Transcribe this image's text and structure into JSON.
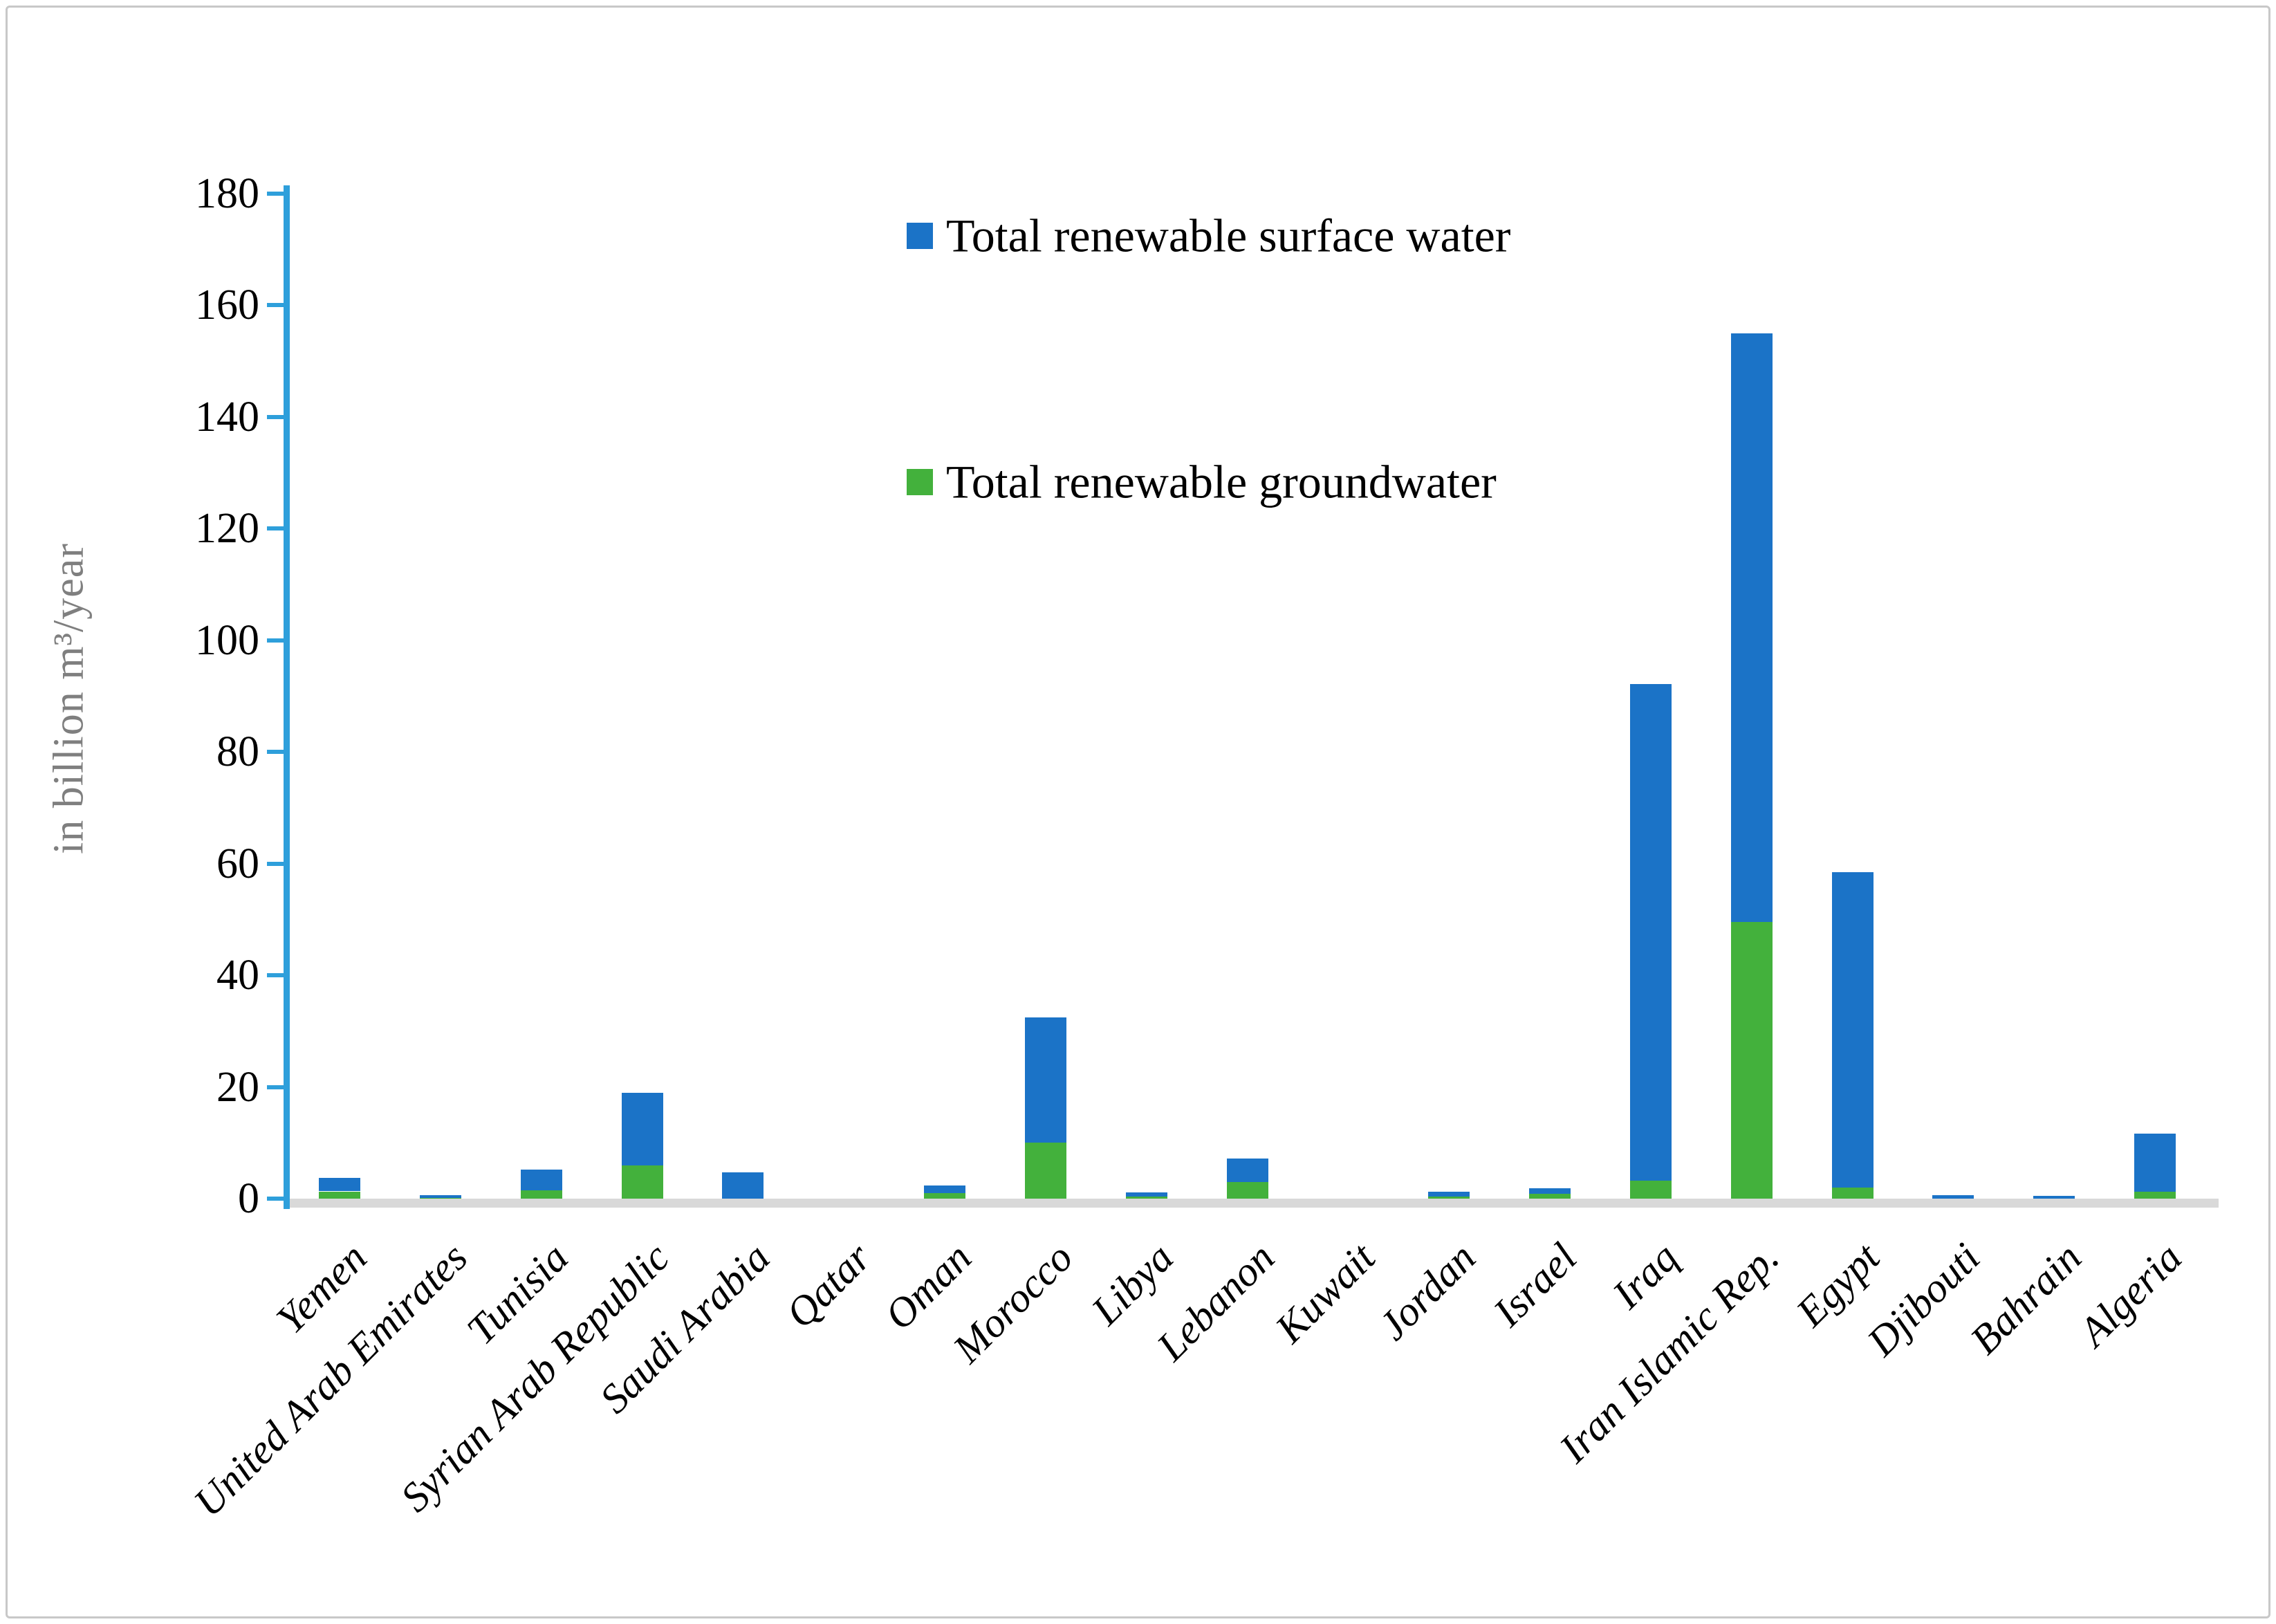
{
  "figure": {
    "background": "#ffffff",
    "border_color": "#c8c8c8"
  },
  "y_axis": {
    "title": "in billion m³/year",
    "title_color": "#7f7f7f",
    "axis_color": "#2e9fdb",
    "baseline_color": "#d9d9d9",
    "tick_label_color": "#000000",
    "tick_labels": [
      "180",
      "160",
      "140",
      "120",
      "100",
      "80",
      "60",
      "40",
      "20",
      "0"
    ]
  },
  "legend": [
    {
      "label": "Total renewable surface water",
      "color": "#1b73c7",
      "swatch": "blue-square-icon"
    },
    {
      "label": "Total renewable groundwater",
      "color": "#43b13c",
      "swatch": "green-square-icon"
    }
  ],
  "chart_data": {
    "type": "bar",
    "stacked": true,
    "title": "",
    "xlabel": "",
    "ylabel": "in billion m³/year",
    "ylim": [
      0,
      180
    ],
    "ytick_step": 20,
    "grid": false,
    "legend_position": "inside-top-center",
    "categories": [
      "Yemen",
      "United Arab Emirates",
      "Tunisia",
      "Syrian Arab Republic",
      "Saudi Arabia",
      "Qatar",
      "Oman",
      "Morocco",
      "Libya",
      "Lebanon",
      "Kuwait",
      "Jordan",
      "Israel",
      "Iraq",
      "Iran Islamic Rep.",
      "Egypt",
      "Djibouti",
      "Bahrain",
      "Algeria"
    ],
    "series": [
      {
        "name": "Total renewable groundwater",
        "color": "#43b13c",
        "stack_order": "bottom",
        "values": [
          1.3,
          0.1,
          1.5,
          6.0,
          0.0,
          0.05,
          1.0,
          10.0,
          0.4,
          3.0,
          0.02,
          0.4,
          0.9,
          3.2,
          49.5,
          2.0,
          0.0,
          0.0,
          1.2
        ]
      },
      {
        "name": "Total renewable surface water",
        "color": "#1b73c7",
        "stack_order": "top",
        "values": [
          2.4,
          0.5,
          3.7,
          13.0,
          4.7,
          0.05,
          1.4,
          22.5,
          0.7,
          4.2,
          0.02,
          0.9,
          1.0,
          89.0,
          105.5,
          56.5,
          0.6,
          0.5,
          10.5
        ]
      }
    ],
    "units": "billion m³/year"
  }
}
